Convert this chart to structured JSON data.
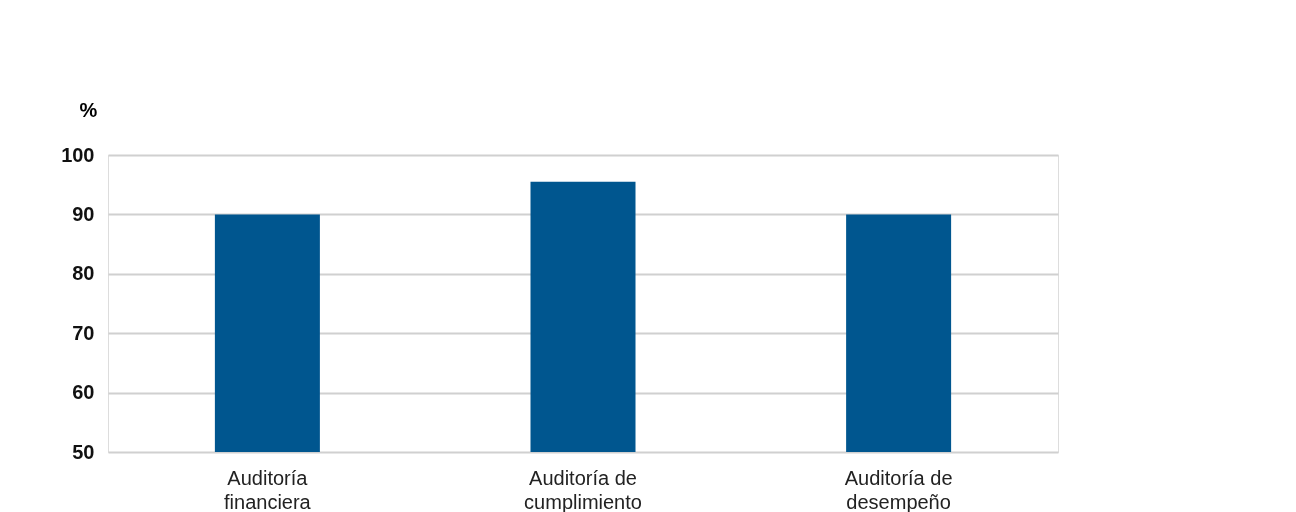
{
  "chart_data": {
    "type": "bar",
    "ylabel": "%",
    "categories": [
      "Auditoría financiera",
      "Auditoría de cumplimiento",
      "Auditoría de desempeño"
    ],
    "values": [
      90,
      95.5,
      90
    ],
    "color": "#00568f",
    "ylim": [
      50,
      100
    ],
    "yticks": [
      50,
      60,
      70,
      80,
      90,
      100
    ],
    "grid": "y"
  }
}
